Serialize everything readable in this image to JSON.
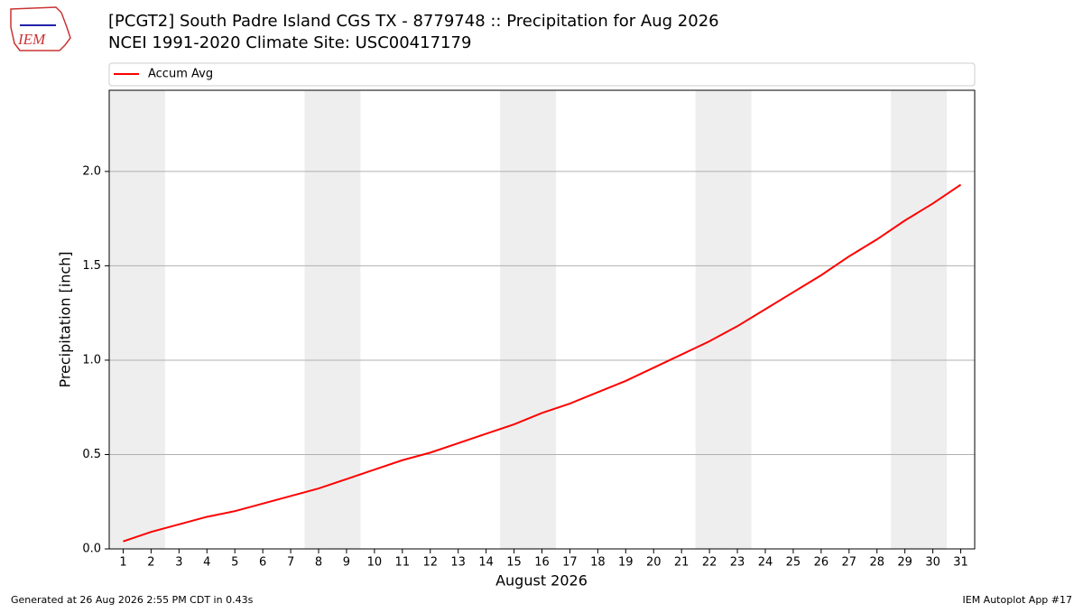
{
  "logo": "IEM",
  "footer_left": "Generated at 26 Aug 2026 2:55 PM CDT in 0.43s",
  "footer_right": "IEM Autoplot App #17",
  "chart_data": {
    "type": "line",
    "title": "[PCGT2] South Padre Island CGS  TX - 8779748 :: Precipitation for Aug 2026",
    "subtitle": "NCEI 1991-2020 Climate Site: USC00417179",
    "x_label": "August 2026",
    "y_label": "Precipitation [inch]",
    "x": [
      1,
      2,
      3,
      4,
      5,
      6,
      7,
      8,
      9,
      10,
      11,
      12,
      13,
      14,
      15,
      16,
      17,
      18,
      19,
      20,
      21,
      22,
      23,
      24,
      25,
      26,
      27,
      28,
      29,
      30,
      31
    ],
    "series": [
      {
        "name": "Accum Avg",
        "color": "#ff0000",
        "values": [
          0.04,
          0.09,
          0.13,
          0.17,
          0.2,
          0.24,
          0.28,
          0.32,
          0.37,
          0.42,
          0.47,
          0.51,
          0.56,
          0.61,
          0.66,
          0.72,
          0.77,
          0.83,
          0.89,
          0.96,
          1.03,
          1.1,
          1.18,
          1.27,
          1.36,
          1.45,
          1.55,
          1.64,
          1.74,
          1.83,
          1.93
        ]
      }
    ],
    "weekend_spans": [
      [
        0.5,
        2.5
      ],
      [
        7.5,
        9.5
      ],
      [
        14.5,
        16.5
      ],
      [
        21.5,
        23.5
      ],
      [
        28.5,
        30.5
      ]
    ],
    "span_color": "#eeeeee",
    "xlim": [
      0.5,
      31.5
    ],
    "ylim": [
      0,
      2.43
    ],
    "xticks": [
      1,
      2,
      3,
      4,
      5,
      6,
      7,
      8,
      9,
      10,
      11,
      12,
      13,
      14,
      15,
      16,
      17,
      18,
      19,
      20,
      21,
      22,
      23,
      24,
      25,
      26,
      27,
      28,
      29,
      30,
      31
    ],
    "yticks": [
      {
        "value": 0,
        "label": "0.0"
      },
      0.5,
      {
        "value": 1,
        "label": "1.0"
      },
      1.5,
      {
        "value": 2,
        "label": "2.0"
      }
    ],
    "grid": true,
    "legend": "top"
  }
}
